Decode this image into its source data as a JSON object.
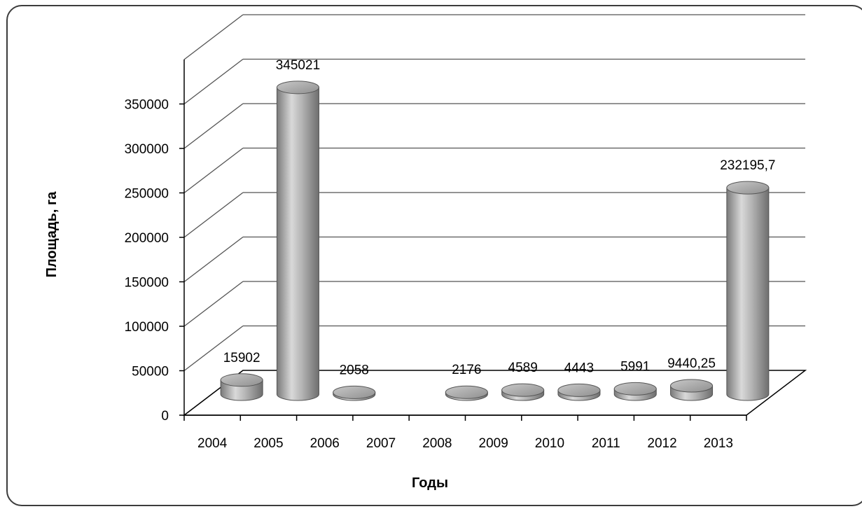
{
  "chart_data": {
    "type": "bar",
    "style": "3d-cylinder",
    "title": "",
    "xlabel": "Годы",
    "ylabel": "Площадь, га",
    "ylim": [
      0,
      400000
    ],
    "ytick_values": [
      0,
      50000,
      100000,
      150000,
      200000,
      250000,
      300000,
      350000
    ],
    "ytick_labels": [
      "0",
      "50000",
      "100000",
      "150000",
      "200000",
      "250000",
      "300000",
      "350000"
    ],
    "categories": [
      "2004",
      "2005",
      "2006",
      "2007",
      "2008",
      "2009",
      "2010",
      "2011",
      "2012",
      "2013"
    ],
    "values": [
      15902,
      345021,
      2058,
      null,
      2176,
      4589,
      4443,
      5991,
      9440.25,
      232195.7
    ],
    "data_labels": [
      "15902",
      "345021",
      "2058",
      "",
      "2176",
      "4589",
      "4443",
      "5991",
      "9440,25",
      "232195,7"
    ],
    "grid": true,
    "legend": "none",
    "colors": {
      "bar": "#a0a0a0",
      "grid": "#555555",
      "frame": "#3c3c3c"
    }
  }
}
